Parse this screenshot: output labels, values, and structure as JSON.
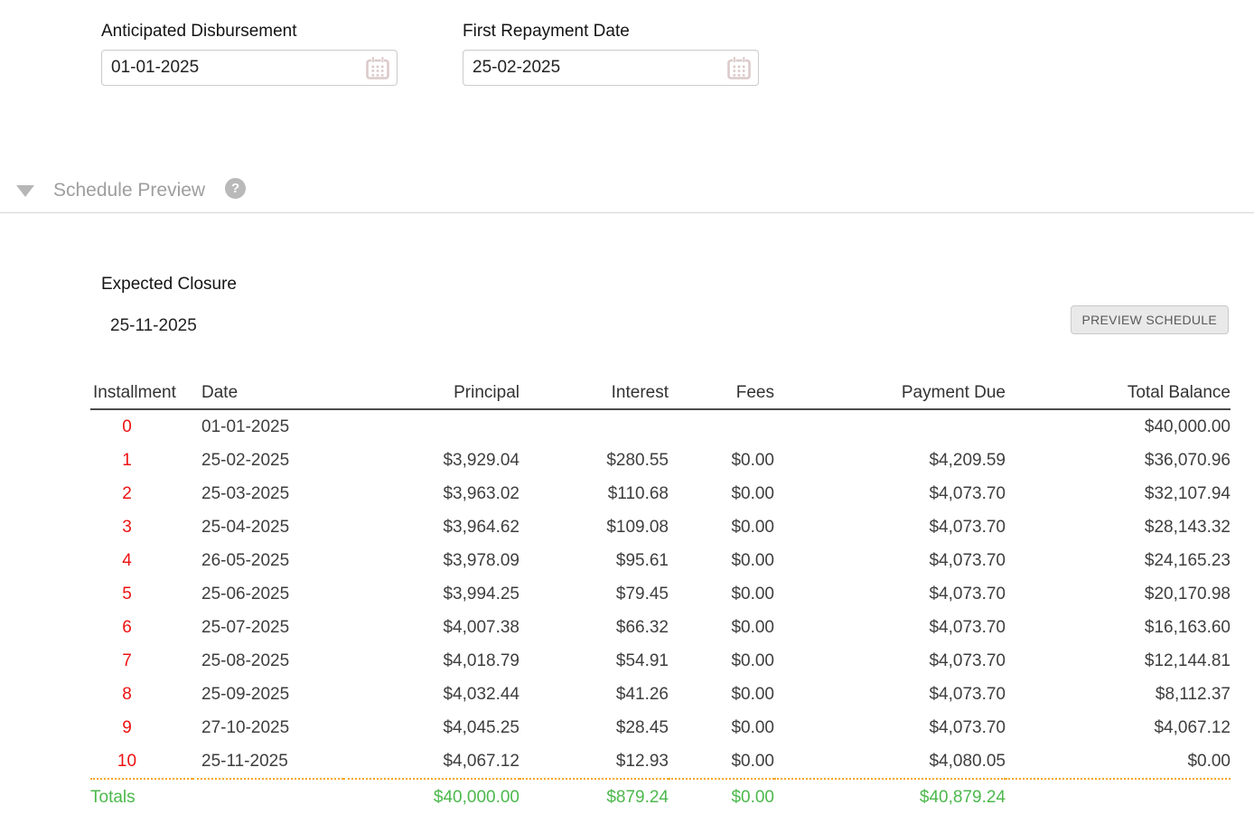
{
  "fields": [
    {
      "label": "Anticipated Disbursement",
      "value": "01-01-2025",
      "icon": "calendar-icon"
    },
    {
      "label": "First Repayment Date",
      "value": "25-02-2025",
      "icon": "calendar-icon"
    }
  ],
  "section": {
    "title": "Schedule Preview",
    "help_glyph": "?"
  },
  "closure": {
    "label": "Expected Closure",
    "value": "25-11-2025"
  },
  "actions": {
    "preview_schedule": "PREVIEW SCHEDULE"
  },
  "table": {
    "headers": [
      "Installment",
      "Date",
      "Principal",
      "Interest",
      "Fees",
      "Payment Due",
      "Total Balance"
    ],
    "rows": [
      [
        "0",
        "01-01-2025",
        "",
        "",
        "",
        "",
        "$40,000.00"
      ],
      [
        "1",
        "25-02-2025",
        "$3,929.04",
        "$280.55",
        "$0.00",
        "$4,209.59",
        "$36,070.96"
      ],
      [
        "2",
        "25-03-2025",
        "$3,963.02",
        "$110.68",
        "$0.00",
        "$4,073.70",
        "$32,107.94"
      ],
      [
        "3",
        "25-04-2025",
        "$3,964.62",
        "$109.08",
        "$0.00",
        "$4,073.70",
        "$28,143.32"
      ],
      [
        "4",
        "26-05-2025",
        "$3,978.09",
        "$95.61",
        "$0.00",
        "$4,073.70",
        "$24,165.23"
      ],
      [
        "5",
        "25-06-2025",
        "$3,994.25",
        "$79.45",
        "$0.00",
        "$4,073.70",
        "$20,170.98"
      ],
      [
        "6",
        "25-07-2025",
        "$4,007.38",
        "$66.32",
        "$0.00",
        "$4,073.70",
        "$16,163.60"
      ],
      [
        "7",
        "25-08-2025",
        "$4,018.79",
        "$54.91",
        "$0.00",
        "$4,073.70",
        "$12,144.81"
      ],
      [
        "8",
        "25-09-2025",
        "$4,032.44",
        "$41.26",
        "$0.00",
        "$4,073.70",
        "$8,112.37"
      ],
      [
        "9",
        "27-10-2025",
        "$4,045.25",
        "$28.45",
        "$0.00",
        "$4,073.70",
        "$4,067.12"
      ],
      [
        "10",
        "25-11-2025",
        "$4,067.12",
        "$12.93",
        "$0.00",
        "$4,080.05",
        "$0.00"
      ]
    ],
    "totals": {
      "label": "Totals",
      "date": "",
      "principal": "$40,000.00",
      "interest": "$879.24",
      "fees": "$0.00",
      "payment_due": "$40,879.24",
      "total_balance": ""
    }
  },
  "colors": {
    "installment_red": "#ee1111",
    "totals_green": "#4cb84c",
    "totals_divider_orange": "#f5a623",
    "section_title_gray": "#9e9e9e",
    "calendar_icon_pink": "#dccaca"
  }
}
